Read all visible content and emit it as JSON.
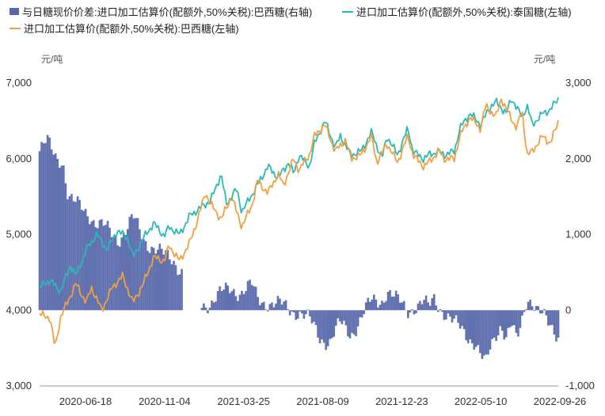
{
  "chart_data": {
    "type": "bar+line",
    "title": "",
    "legend": [
      {
        "name": "与日糖现价价差:进口加工估算价(配额外,50%关税):巴西糖(右轴)",
        "type": "bar",
        "color": "#5566aa"
      },
      {
        "name": "进口加工估算价(配额外,50%关税):泰国糖(左轴)",
        "type": "line",
        "color": "#2bb8b8"
      },
      {
        "name": "进口加工估算价(配额外,50%关税):巴西糖(左轴)",
        "type": "line",
        "color": "#f0a040"
      }
    ],
    "left_axis": {
      "unit": "元/吨",
      "ylim": [
        3000,
        7000
      ],
      "ticks": [
        "3,000",
        "4,000",
        "5,000",
        "6,000",
        "7,000"
      ]
    },
    "right_axis": {
      "unit": "元/吨",
      "ylim": [
        -1000,
        3000
      ],
      "ticks": [
        "-1,000",
        "0",
        "1,000",
        "2,000",
        "3,000"
      ]
    },
    "x_ticks": [
      "2020-06-18",
      "2020-11-04",
      "2021-03-25",
      "2021-08-09",
      "2021-12-23",
      "2022-05-10",
      "2022-09-26"
    ],
    "series": [
      {
        "name": "泰国糖",
        "axis": "left",
        "color": "#2bb8b8",
        "points": [
          [
            0,
            4300
          ],
          [
            0.02,
            4400
          ],
          [
            0.04,
            4250
          ],
          [
            0.06,
            4600
          ],
          [
            0.07,
            4450
          ],
          [
            0.09,
            4800
          ],
          [
            0.11,
            5000
          ],
          [
            0.13,
            4800
          ],
          [
            0.15,
            5050
          ],
          [
            0.17,
            4950
          ],
          [
            0.18,
            4700
          ],
          [
            0.2,
            4950
          ],
          [
            0.22,
            5150
          ],
          [
            0.24,
            4980
          ],
          [
            0.25,
            5100
          ],
          [
            0.27,
            5000
          ],
          [
            0.29,
            5250
          ],
          [
            0.31,
            5350
          ],
          [
            0.33,
            5450
          ],
          [
            0.35,
            5800
          ],
          [
            0.36,
            5400
          ],
          [
            0.38,
            5600
          ],
          [
            0.39,
            5300
          ],
          [
            0.42,
            5650
          ],
          [
            0.44,
            5900
          ],
          [
            0.46,
            5750
          ],
          [
            0.48,
            5950
          ],
          [
            0.49,
            5800
          ],
          [
            0.5,
            6050
          ],
          [
            0.52,
            5900
          ],
          [
            0.53,
            6200
          ],
          [
            0.55,
            6500
          ],
          [
            0.57,
            6150
          ],
          [
            0.58,
            6300
          ],
          [
            0.6,
            6050
          ],
          [
            0.62,
            6100
          ],
          [
            0.64,
            6350
          ],
          [
            0.66,
            6000
          ],
          [
            0.67,
            6300
          ],
          [
            0.69,
            6050
          ],
          [
            0.71,
            6400
          ],
          [
            0.72,
            6100
          ],
          [
            0.74,
            6000
          ],
          [
            0.75,
            6050
          ],
          [
            0.77,
            6100
          ],
          [
            0.78,
            6050
          ],
          [
            0.8,
            6100
          ],
          [
            0.81,
            6400
          ],
          [
            0.83,
            6600
          ],
          [
            0.85,
            6450
          ],
          [
            0.87,
            6700
          ],
          [
            0.88,
            6750
          ],
          [
            0.9,
            6600
          ],
          [
            0.91,
            6800
          ],
          [
            0.93,
            6550
          ],
          [
            0.94,
            6700
          ],
          [
            0.95,
            6450
          ],
          [
            0.97,
            6600
          ],
          [
            0.985,
            6650
          ],
          [
            1.0,
            6800
          ]
        ]
      },
      {
        "name": "巴西糖",
        "axis": "left",
        "color": "#f0a040",
        "points": [
          [
            0,
            3950
          ],
          [
            0.02,
            3900
          ],
          [
            0.03,
            3500
          ],
          [
            0.04,
            3900
          ],
          [
            0.05,
            4050
          ],
          [
            0.07,
            4350
          ],
          [
            0.09,
            4100
          ],
          [
            0.1,
            4300
          ],
          [
            0.12,
            4000
          ],
          [
            0.14,
            4300
          ],
          [
            0.16,
            4450
          ],
          [
            0.18,
            4100
          ],
          [
            0.2,
            4350
          ],
          [
            0.22,
            4700
          ],
          [
            0.24,
            4650
          ],
          [
            0.25,
            4850
          ],
          [
            0.27,
            4650
          ],
          [
            0.29,
            4900
          ],
          [
            0.3,
            5100
          ],
          [
            0.32,
            5550
          ],
          [
            0.33,
            5400
          ],
          [
            0.35,
            5200
          ],
          [
            0.37,
            5500
          ],
          [
            0.39,
            5100
          ],
          [
            0.41,
            5400
          ],
          [
            0.42,
            5700
          ],
          [
            0.44,
            5550
          ],
          [
            0.46,
            5800
          ],
          [
            0.47,
            5650
          ],
          [
            0.49,
            6000
          ],
          [
            0.5,
            5850
          ],
          [
            0.52,
            6050
          ],
          [
            0.53,
            6300
          ],
          [
            0.55,
            6450
          ],
          [
            0.57,
            6100
          ],
          [
            0.59,
            6250
          ],
          [
            0.6,
            6000
          ],
          [
            0.62,
            6050
          ],
          [
            0.64,
            6300
          ],
          [
            0.65,
            5950
          ],
          [
            0.67,
            6200
          ],
          [
            0.69,
            5950
          ],
          [
            0.71,
            6300
          ],
          [
            0.72,
            6050
          ],
          [
            0.74,
            5900
          ],
          [
            0.75,
            5950
          ],
          [
            0.77,
            6100
          ],
          [
            0.78,
            6000
          ],
          [
            0.8,
            6000
          ],
          [
            0.81,
            6300
          ],
          [
            0.83,
            6550
          ],
          [
            0.85,
            6400
          ],
          [
            0.86,
            6700
          ],
          [
            0.88,
            6550
          ],
          [
            0.89,
            6800
          ],
          [
            0.9,
            6650
          ],
          [
            0.92,
            6400
          ],
          [
            0.93,
            6650
          ],
          [
            0.94,
            6050
          ],
          [
            0.95,
            6100
          ],
          [
            0.97,
            6300
          ],
          [
            0.985,
            6200
          ],
          [
            1.0,
            6500
          ]
        ]
      },
      {
        "name": "价差",
        "axis": "right",
        "color": "#5566aa",
        "points": [
          [
            0,
            2100
          ],
          [
            0.015,
            2200
          ],
          [
            0.03,
            2050
          ],
          [
            0.045,
            2000
          ],
          [
            0.055,
            1500
          ],
          [
            0.065,
            1400
          ],
          [
            0.08,
            1350
          ],
          [
            0.095,
            1300
          ],
          [
            0.11,
            1150
          ],
          [
            0.13,
            1050
          ],
          [
            0.15,
            950
          ],
          [
            0.17,
            1100
          ],
          [
            0.18,
            1200
          ],
          [
            0.2,
            950
          ],
          [
            0.22,
            850
          ],
          [
            0.24,
            700
          ],
          [
            0.26,
            650
          ],
          [
            0.275,
            550
          ],
          [
            0.28,
            0
          ],
          [
            0.3,
            0
          ],
          [
            0.31,
            80
          ],
          [
            0.33,
            120
          ],
          [
            0.35,
            200
          ],
          [
            0.37,
            300
          ],
          [
            0.39,
            250
          ],
          [
            0.41,
            300
          ],
          [
            0.42,
            150
          ],
          [
            0.44,
            120
          ],
          [
            0.46,
            60
          ],
          [
            0.48,
            20
          ],
          [
            0.5,
            0
          ],
          [
            0.52,
            -150
          ],
          [
            0.54,
            -350
          ],
          [
            0.56,
            -400
          ],
          [
            0.58,
            -200
          ],
          [
            0.6,
            -300
          ],
          [
            0.62,
            -100
          ],
          [
            0.64,
            100
          ],
          [
            0.66,
            150
          ],
          [
            0.67,
            280
          ],
          [
            0.69,
            100
          ],
          [
            0.71,
            0
          ],
          [
            0.72,
            60
          ],
          [
            0.74,
            100
          ],
          [
            0.75,
            0
          ],
          [
            0.76,
            150
          ],
          [
            0.78,
            0
          ],
          [
            0.8,
            -200
          ],
          [
            0.82,
            -300
          ],
          [
            0.84,
            -400
          ],
          [
            0.85,
            -600
          ],
          [
            0.86,
            -750
          ],
          [
            0.87,
            -500
          ],
          [
            0.88,
            -300
          ],
          [
            0.89,
            -150
          ],
          [
            0.9,
            -350
          ],
          [
            0.91,
            -200
          ],
          [
            0.92,
            -450
          ],
          [
            0.93,
            -150
          ],
          [
            0.94,
            200
          ],
          [
            0.95,
            150
          ],
          [
            0.96,
            0
          ],
          [
            0.97,
            -100
          ],
          [
            0.98,
            -200
          ],
          [
            1.0,
            -300
          ]
        ]
      }
    ]
  },
  "legend_labels": {
    "bar": "与日糖现价价差:进口加工估算价(配额外,50%关税):巴西糖(右轴)",
    "thai": "进口加工估算价(配额外,50%关税):泰国糖(左轴)",
    "brazil": "进口加工估算价(配额外,50%关税):巴西糖(左轴)"
  },
  "units": {
    "left": "元/吨",
    "right": "元/吨"
  }
}
